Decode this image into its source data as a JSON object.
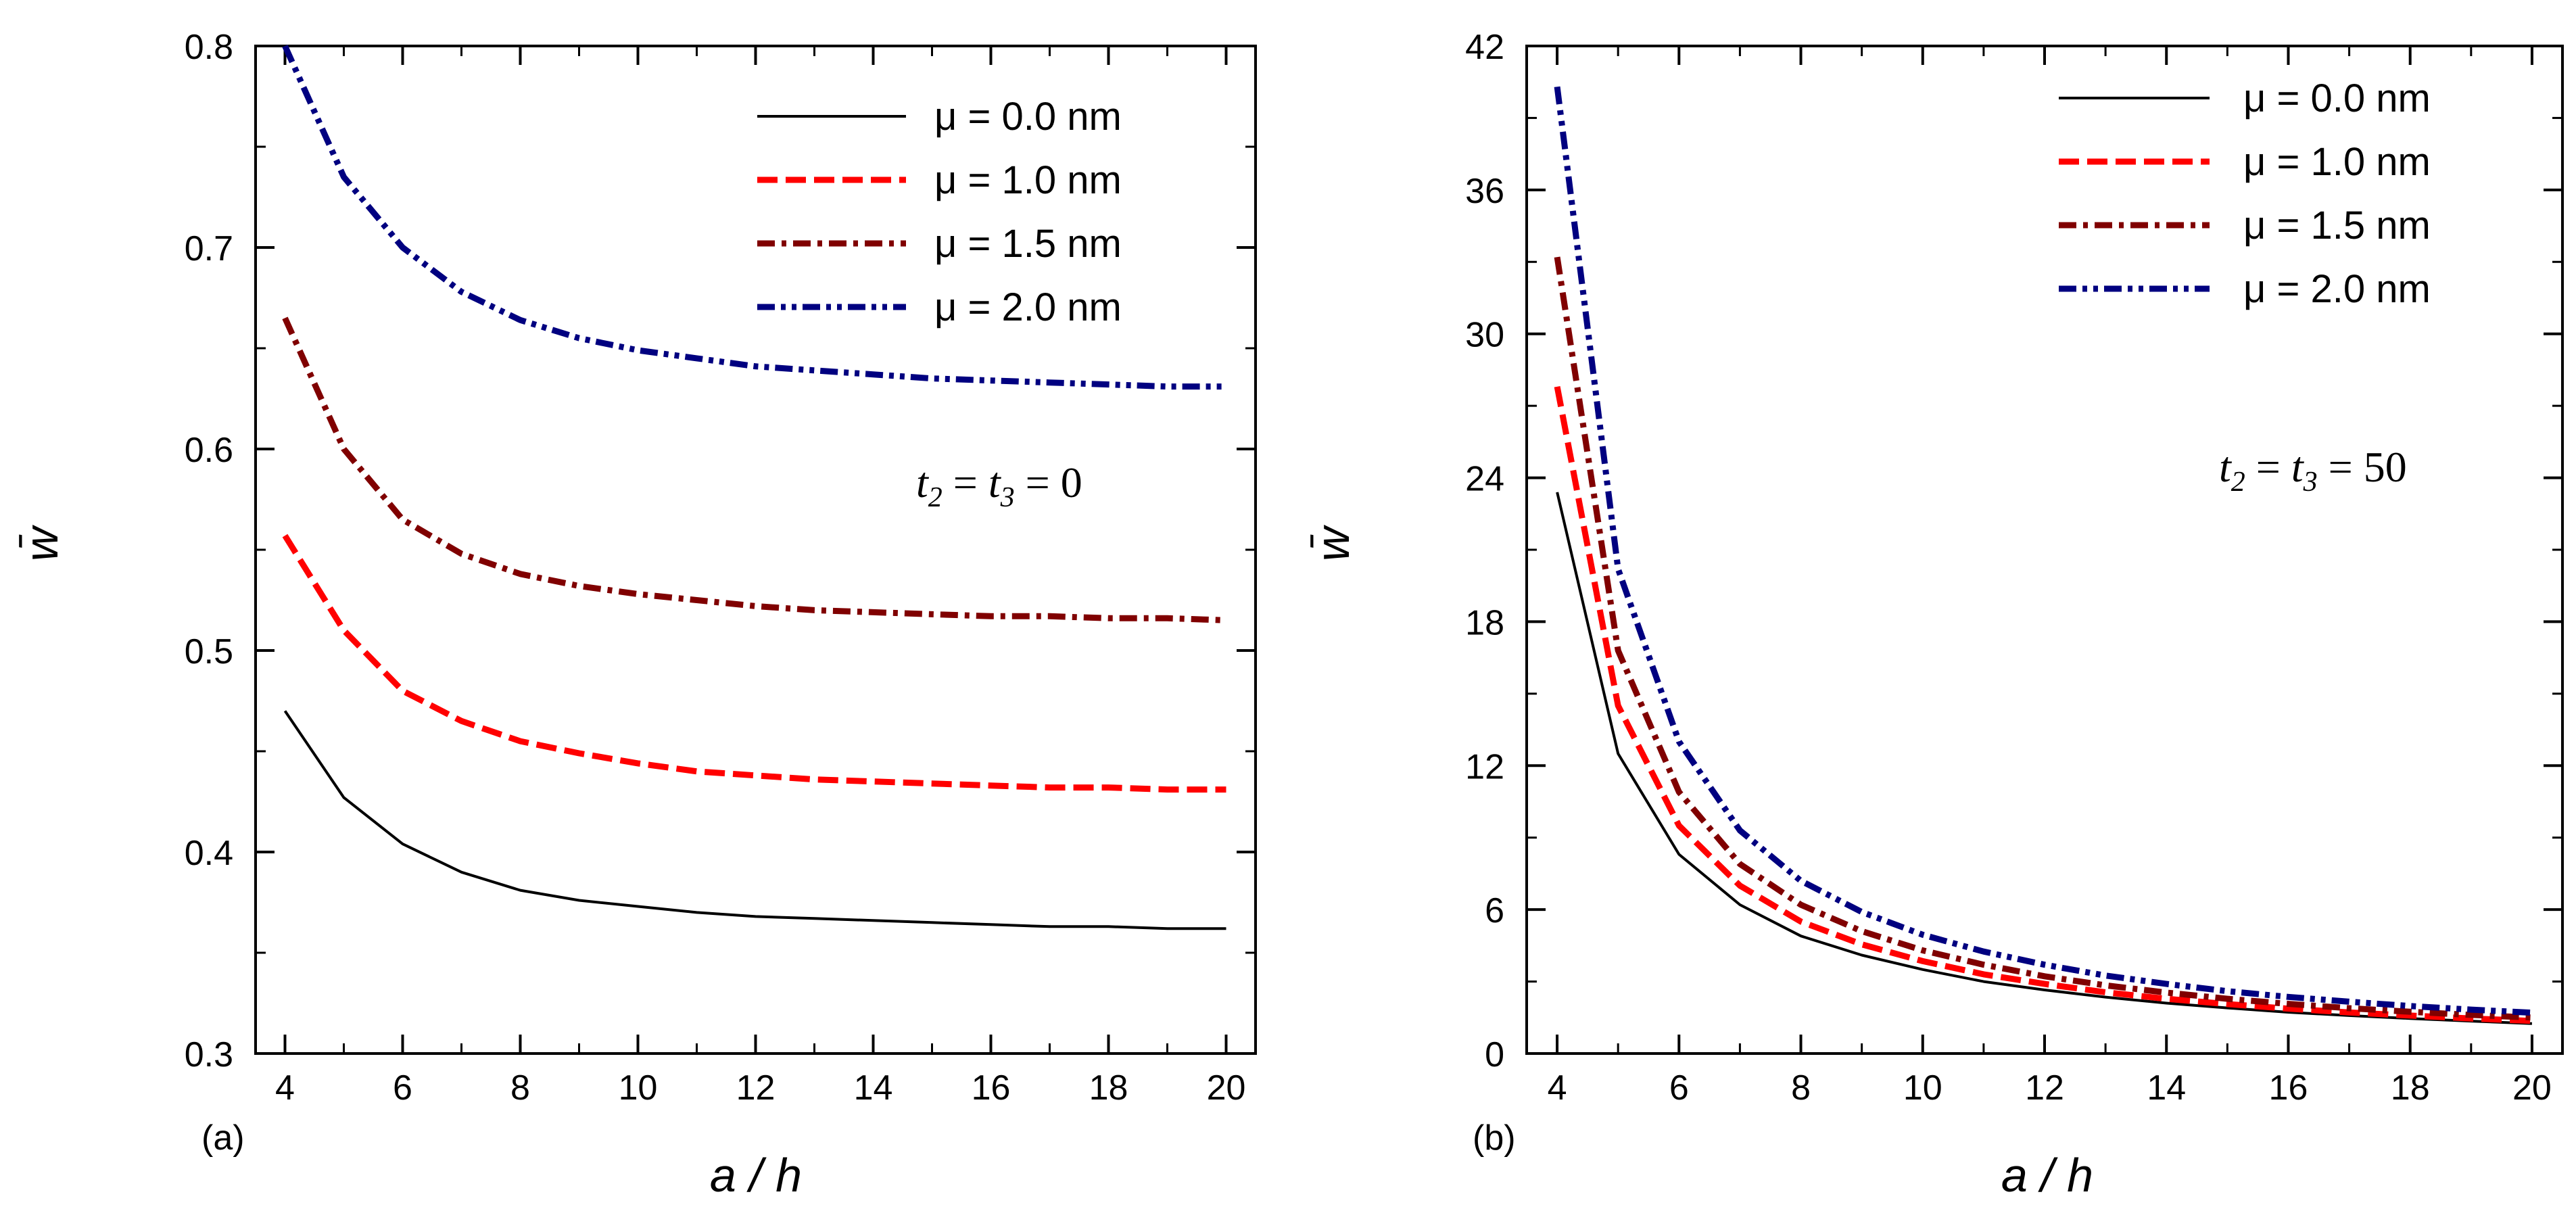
{
  "chart_data": [
    {
      "type": "line",
      "panel_label": "(a)",
      "xlabel": "a / h",
      "ylabel": "w̄",
      "xlim": [
        3.5,
        20.5
      ],
      "ylim": [
        0.3,
        0.8
      ],
      "xticks": [
        4,
        6,
        8,
        10,
        12,
        14,
        16,
        18,
        20
      ],
      "yticks": [
        0.3,
        0.4,
        0.5,
        0.6,
        0.7,
        0.8
      ],
      "ytick_labels": [
        "0.3",
        "0.4",
        "0.5",
        "0.6",
        "0.7",
        "0.8"
      ],
      "legend_position": "top-right",
      "annotation": {
        "t": "t",
        "sub1": "2",
        "eq1": " = ",
        "sub2": "3",
        "eq2": " = ",
        "value": "0"
      },
      "x": [
        4,
        5,
        6,
        7,
        8,
        9,
        10,
        11,
        12,
        13,
        14,
        15,
        16,
        17,
        18,
        19,
        20
      ],
      "series": [
        {
          "name": "μ = 0.0 nm",
          "color": "#000000",
          "style": "solid",
          "values": [
            0.47,
            0.427,
            0.404,
            0.39,
            0.381,
            0.376,
            0.373,
            0.37,
            0.368,
            0.367,
            0.366,
            0.365,
            0.364,
            0.363,
            0.363,
            0.362,
            0.362
          ]
        },
        {
          "name": "μ = 1.0 nm",
          "color": "#ff0000",
          "style": "dashed",
          "values": [
            0.557,
            0.51,
            0.48,
            0.465,
            0.455,
            0.449,
            0.444,
            0.44,
            0.438,
            0.436,
            0.435,
            0.434,
            0.433,
            0.432,
            0.432,
            0.431,
            0.431
          ]
        },
        {
          "name": "μ = 1.5 nm",
          "color": "#800000",
          "style": "dashdot",
          "values": [
            0.665,
            0.6,
            0.565,
            0.548,
            0.538,
            0.532,
            0.528,
            0.525,
            0.522,
            0.52,
            0.519,
            0.518,
            0.517,
            0.517,
            0.516,
            0.516,
            0.515
          ]
        },
        {
          "name": "μ = 2.0 nm",
          "color": "#000080",
          "style": "dashdotdot",
          "values": [
            0.8,
            0.735,
            0.7,
            0.678,
            0.664,
            0.655,
            0.649,
            0.645,
            0.641,
            0.639,
            0.637,
            0.635,
            0.634,
            0.633,
            0.632,
            0.631,
            0.631
          ]
        }
      ]
    },
    {
      "type": "line",
      "panel_label": "(b)",
      "xlabel": "a / h",
      "ylabel": "w̄",
      "xlim": [
        3.5,
        20.5
      ],
      "ylim": [
        0,
        42
      ],
      "xticks": [
        4,
        6,
        8,
        10,
        12,
        14,
        16,
        18,
        20
      ],
      "yticks": [
        0,
        6,
        12,
        18,
        24,
        30,
        36,
        42
      ],
      "ytick_labels": [
        "0",
        "6",
        "12",
        "18",
        "24",
        "30",
        "36",
        "42"
      ],
      "legend_position": "top-right",
      "annotation": {
        "t": "t",
        "sub1": "2",
        "eq1": " = ",
        "sub2": "3",
        "eq2": " = ",
        "value": "50"
      },
      "x": [
        4,
        5,
        6,
        7,
        8,
        9,
        10,
        11,
        12,
        13,
        14,
        15,
        16,
        17,
        18,
        19,
        20
      ],
      "series": [
        {
          "name": "μ = 0.0 nm",
          "color": "#000000",
          "style": "solid",
          "values": [
            23.4,
            12.5,
            8.3,
            6.2,
            4.9,
            4.1,
            3.5,
            3.0,
            2.65,
            2.35,
            2.1,
            1.9,
            1.72,
            1.58,
            1.46,
            1.35,
            1.25
          ]
        },
        {
          "name": "μ = 1.0 nm",
          "color": "#ff0000",
          "style": "dashed",
          "values": [
            27.8,
            14.5,
            9.5,
            7.0,
            5.5,
            4.55,
            3.85,
            3.3,
            2.9,
            2.55,
            2.28,
            2.06,
            1.87,
            1.71,
            1.58,
            1.46,
            1.36
          ]
        },
        {
          "name": "μ = 1.5 nm",
          "color": "#800000",
          "style": "dashdot",
          "values": [
            33.2,
            16.8,
            10.9,
            7.9,
            6.2,
            5.1,
            4.3,
            3.7,
            3.22,
            2.84,
            2.54,
            2.28,
            2.07,
            1.89,
            1.74,
            1.61,
            1.5
          ]
        },
        {
          "name": "μ = 2.0 nm",
          "color": "#000080",
          "style": "dashdotdot",
          "values": [
            40.3,
            20.2,
            13.0,
            9.3,
            7.2,
            5.9,
            4.95,
            4.25,
            3.7,
            3.25,
            2.9,
            2.6,
            2.36,
            2.16,
            1.98,
            1.83,
            1.7
          ]
        }
      ]
    }
  ]
}
